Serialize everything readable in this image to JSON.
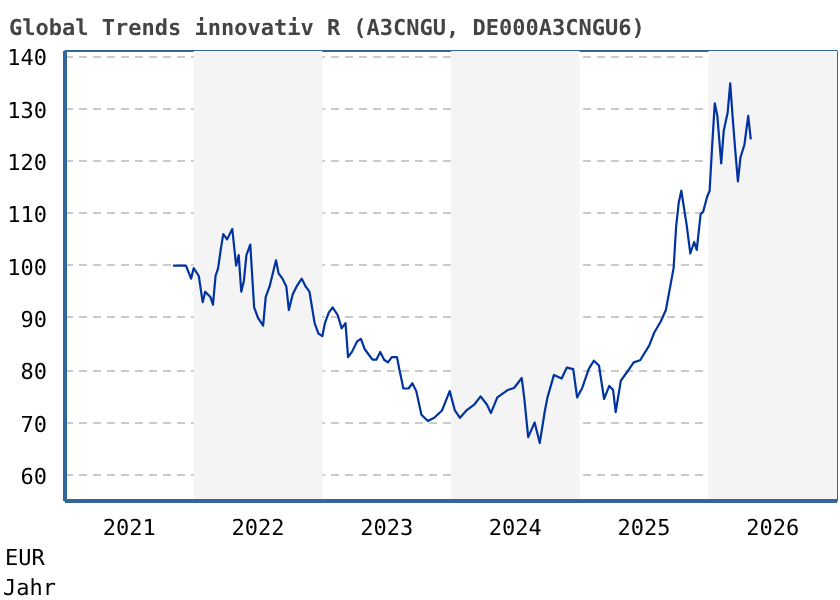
{
  "chart_data": {
    "type": "line",
    "title": "Global Trends innovativ R (A3CNGU, DE000A3CNGU6)",
    "xlabel": "Jahr",
    "ylabel": "EUR",
    "x": [
      2021.84,
      2021.94,
      2021.98,
      2022.0,
      2022.04,
      2022.07,
      2022.09,
      2022.13,
      2022.15,
      2022.17,
      2022.19,
      2022.21,
      2022.23,
      2022.26,
      2022.3,
      2022.33,
      2022.35,
      2022.37,
      2022.39,
      2022.41,
      2022.44,
      2022.47,
      2022.5,
      2022.54,
      2022.56,
      2022.59,
      2022.62,
      2022.64,
      2022.66,
      2022.69,
      2022.72,
      2022.74,
      2022.77,
      2022.8,
      2022.84,
      2022.87,
      2022.9,
      2022.94,
      2022.97,
      2023.0,
      2023.02,
      2023.05,
      2023.08,
      2023.12,
      2023.15,
      2023.18,
      2023.2,
      2023.23,
      2023.27,
      2023.3,
      2023.33,
      2023.36,
      2023.39,
      2023.42,
      2023.45,
      2023.48,
      2023.51,
      2023.54,
      2023.58,
      2023.6,
      2023.63,
      2023.67,
      2023.7,
      2023.73,
      2023.77,
      2023.82,
      2023.87,
      2023.93,
      2023.99,
      2024.03,
      2024.07,
      2024.12,
      2024.18,
      2024.23,
      2024.28,
      2024.31,
      2024.36,
      2024.44,
      2024.49,
      2024.55,
      2024.57,
      2024.6,
      2024.65,
      2024.69,
      2024.73,
      2024.75,
      2024.8,
      2024.86,
      2024.9,
      2024.95,
      2024.98,
      2025.02,
      2025.07,
      2025.11,
      2025.15,
      2025.19,
      2025.23,
      2025.26,
      2025.28,
      2025.32,
      2025.37,
      2025.42,
      2025.47,
      2025.54,
      2025.58,
      2025.63,
      2025.67,
      2025.7,
      2025.73,
      2025.75,
      2025.77,
      2025.79,
      2025.83,
      2025.86,
      2025.89,
      2025.91,
      2025.94,
      2025.96,
      2025.99,
      2026.01,
      2026.03,
      2026.05,
      2026.07,
      2026.1,
      2026.12,
      2026.15,
      2026.17,
      2026.19,
      2026.21,
      2026.23,
      2026.25,
      2026.28,
      2026.31,
      2026.33
    ],
    "series": [
      {
        "color": "#0033a0",
        "values": [
          100,
          100,
          97.5,
          99.5,
          98,
          93,
          95,
          94,
          92.5,
          98,
          99.5,
          103,
          106,
          105,
          107,
          100,
          102,
          95,
          97,
          102,
          104,
          92,
          90,
          88.5,
          94,
          96,
          99,
          101,
          98.5,
          97.5,
          96,
          91.5,
          94.5,
          96,
          97.5,
          96,
          95,
          89,
          87,
          86.5,
          89,
          91,
          92,
          90.5,
          88,
          89,
          82.5,
          83.5,
          85.5,
          86,
          84,
          83,
          82,
          82,
          83.5,
          82,
          81.5,
          82.5,
          82.5,
          80,
          76.5,
          76.5,
          77.5,
          76,
          71.5,
          70.3,
          70.9,
          72.3,
          76,
          72.3,
          70.9,
          72.3,
          73.4,
          75,
          73.4,
          71.8,
          74.8,
          76.2,
          76.6,
          78.5,
          74.5,
          67.2,
          70,
          66.1,
          72.3,
          74.8,
          79.1,
          78.4,
          80.5,
          80.2,
          74.8,
          76.6,
          80.2,
          81.8,
          80.9,
          74.5,
          77,
          76.2,
          72,
          78,
          79.7,
          81.5,
          81.9,
          84.7,
          87.2,
          89.3,
          91.5,
          95.5,
          99.5,
          107.5,
          112,
          114.3,
          108,
          102.3,
          104.5,
          103,
          109.8,
          110.3,
          113.1,
          114.3,
          123,
          131,
          128.6,
          119.5,
          125.8,
          129.2,
          134.8,
          128,
          121.8,
          116.1,
          120.7,
          123,
          128.6,
          124.1
        ]
      }
    ],
    "xlim": [
      2021,
      2027
    ],
    "xticks": [
      {
        "value": 2021.5,
        "label": "2021"
      },
      {
        "value": 2022.5,
        "label": "2022"
      },
      {
        "value": 2023.5,
        "label": "2023"
      },
      {
        "value": 2024.5,
        "label": "2024"
      },
      {
        "value": 2025.5,
        "label": "2025"
      },
      {
        "value": 2026.5,
        "label": "2026"
      }
    ],
    "ylim": [
      55,
      141
    ],
    "yticks": [
      60,
      70,
      80,
      90,
      100,
      110,
      120,
      130,
      140
    ],
    "grid": "y",
    "line_style": "solid",
    "marker": "none",
    "bands": [
      {
        "axis": "x",
        "from": 2022,
        "to": 2023,
        "color": "#f4f4f4"
      },
      {
        "axis": "x",
        "from": 2024,
        "to": 2025,
        "color": "#f4f4f4"
      },
      {
        "axis": "x",
        "from": 2026,
        "to": 2027,
        "color": "#f4f4f4"
      }
    ]
  }
}
